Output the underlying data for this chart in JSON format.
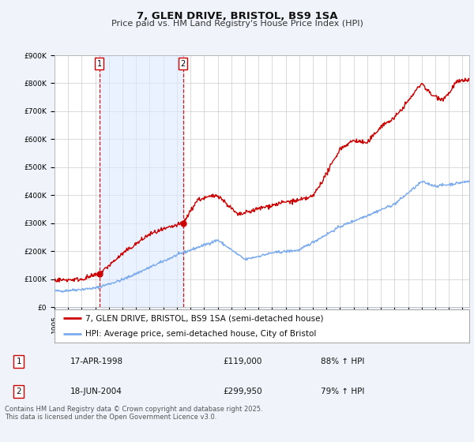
{
  "title": "7, GLEN DRIVE, BRISTOL, BS9 1SA",
  "subtitle": "Price paid vs. HM Land Registry's House Price Index (HPI)",
  "ylim": [
    0,
    900000
  ],
  "yticks": [
    0,
    100000,
    200000,
    300000,
    400000,
    500000,
    600000,
    700000,
    800000,
    900000
  ],
  "ytick_labels": [
    "£0",
    "£100K",
    "£200K",
    "£300K",
    "£400K",
    "£500K",
    "£600K",
    "£700K",
    "£800K",
    "£900K"
  ],
  "background_color": "#f0f4fa",
  "plot_bg_color": "#ffffff",
  "grid_color": "#cccccc",
  "sale1_date": 1998.29,
  "sale1_price": 119000,
  "sale1_label": "1",
  "sale2_date": 2004.46,
  "sale2_price": 299950,
  "sale2_label": "2",
  "hpi_line_color": "#7aaaee",
  "price_line_color": "#cc0000",
  "sale_marker_color": "#cc0000",
  "vline_color": "#cc0000",
  "span_color": "#dce8ff",
  "legend1_text": "7, GLEN DRIVE, BRISTOL, BS9 1SA (semi-detached house)",
  "legend2_text": "HPI: Average price, semi-detached house, City of Bristol",
  "table_row1": [
    "1",
    "17-APR-1998",
    "£119,000",
    "88% ↑ HPI"
  ],
  "table_row2": [
    "2",
    "18-JUN-2004",
    "£299,950",
    "79% ↑ HPI"
  ],
  "footnote": "Contains HM Land Registry data © Crown copyright and database right 2025.\nThis data is licensed under the Open Government Licence v3.0.",
  "title_fontsize": 9.5,
  "subtitle_fontsize": 8,
  "tick_fontsize": 6.5,
  "legend_fontsize": 7.5,
  "table_fontsize": 7.5,
  "footnote_fontsize": 6
}
